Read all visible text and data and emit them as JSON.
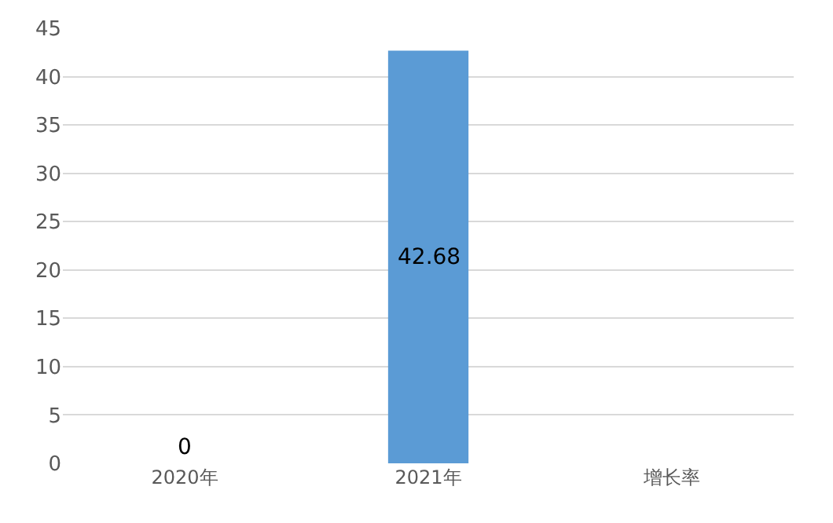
{
  "chart_data": {
    "type": "bar",
    "categories": [
      "2020年",
      "2021年",
      "增长率"
    ],
    "values": [
      0,
      42.68,
      null
    ],
    "value_labels": [
      "0",
      "42.68",
      null
    ],
    "color": "#5b9bd5",
    "ylim": [
      0,
      45
    ],
    "yticks": [
      0,
      5,
      10,
      15,
      20,
      25,
      30,
      35,
      40,
      45
    ],
    "grid": "y",
    "legend": false
  }
}
